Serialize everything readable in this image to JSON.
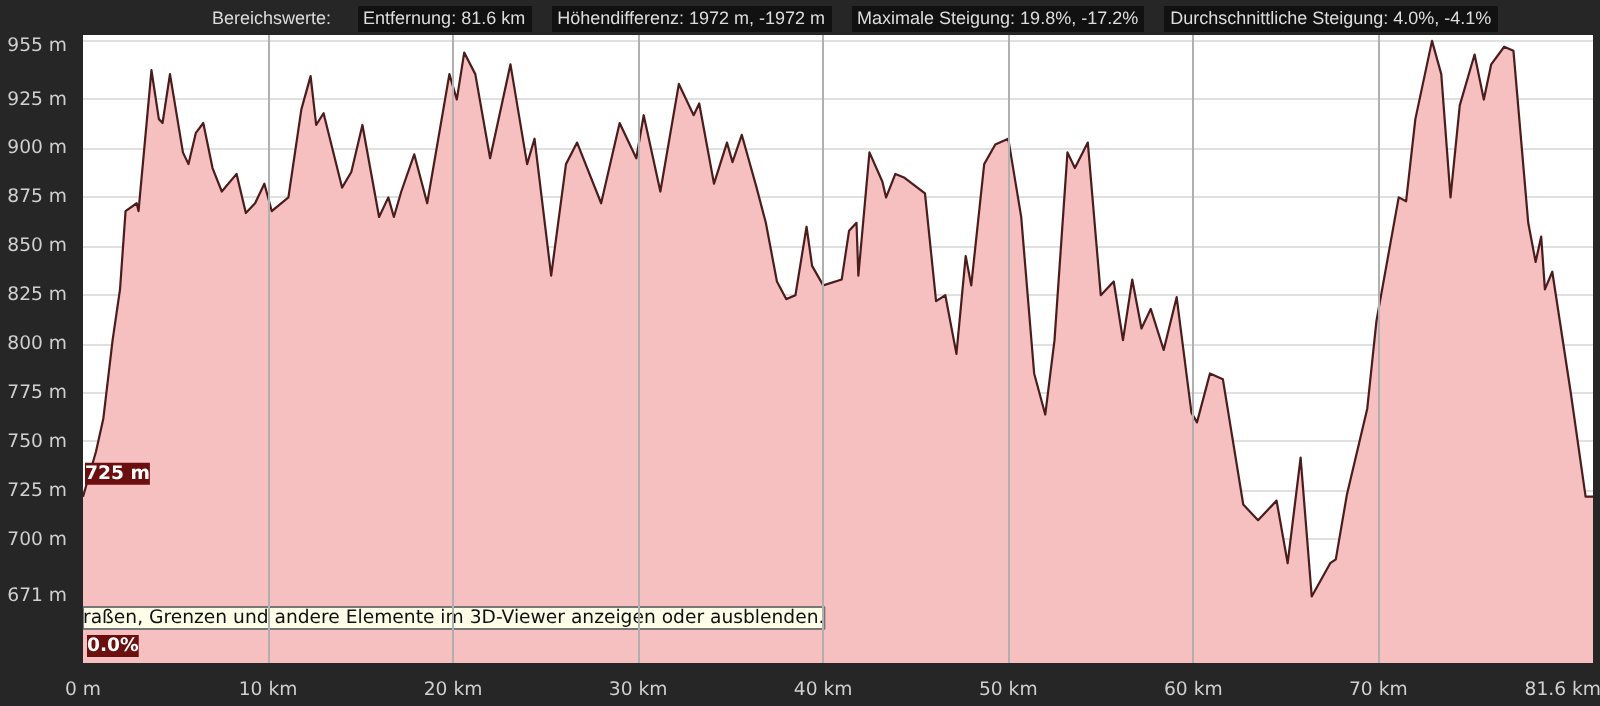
{
  "chart_data": {
    "type": "area",
    "xlim": [
      0,
      81.6
    ],
    "ylim": [
      637,
      958
    ],
    "xticks": [
      {
        "value": 0,
        "label": "0 m"
      },
      {
        "value": 10,
        "label": "10 km"
      },
      {
        "value": 20,
        "label": "20 km"
      },
      {
        "value": 30,
        "label": "30 km"
      },
      {
        "value": 40,
        "label": "40 km"
      },
      {
        "value": 50,
        "label": "50 km"
      },
      {
        "value": 60,
        "label": "60 km"
      },
      {
        "value": 70,
        "label": "70 km"
      },
      {
        "value": 81.6,
        "label": "81.6 km"
      }
    ],
    "yticks": [
      {
        "value": 671,
        "label": "671 m"
      },
      {
        "value": 700,
        "label": "700 m"
      },
      {
        "value": 725,
        "label": "725 m"
      },
      {
        "value": 750,
        "label": "750 m"
      },
      {
        "value": 775,
        "label": "775 m"
      },
      {
        "value": 800,
        "label": "800 m"
      },
      {
        "value": 825,
        "label": "825 m"
      },
      {
        "value": 850,
        "label": "850 m"
      },
      {
        "value": 875,
        "label": "875 m"
      },
      {
        "value": 900,
        "label": "900 m"
      },
      {
        "value": 925,
        "label": "925 m"
      },
      {
        "value": 955,
        "label": "955 m"
      }
    ],
    "grid": true,
    "annotations": [
      "Bereichswerte:",
      "Entfernung: 81.6 km",
      "Höhendifferenz: 1972 m, -1972 m",
      "Maximale Steigung: 19.8%, -17.2%",
      "Durchschnittliche Steigung: 4.0%, -4.1%",
      {
        "text": "725 m",
        "x": 0,
        "y": 725
      },
      "0.0%",
      "raßen, Grenzen und andere Elemente im 3D-Viewer anzeigen oder ausblenden."
    ],
    "series": [
      {
        "color": "#f6bfc0",
        "x": [
          0,
          0.7,
          1.1,
          1.6,
          2.0,
          2.3,
          2.9,
          3.0,
          3.7,
          4.1,
          4.3,
          4.7,
          5.4,
          5.7,
          6.1,
          6.5,
          7.0,
          7.5,
          8.3,
          8.8,
          9.3,
          9.8,
          10.2,
          11.1,
          11.8,
          12.3,
          12.6,
          13.0,
          14.0,
          14.5,
          15.1,
          16.0,
          16.5,
          16.8,
          17.2,
          17.9,
          18.6,
          19.8,
          20.2,
          20.6,
          21.2,
          22.0,
          23.1,
          24.0,
          24.4,
          25.3,
          26.1,
          26.7,
          28.0,
          29.0,
          29.9,
          30.3,
          31.2,
          32.2,
          33.0,
          33.3,
          34.1,
          34.8,
          35.1,
          35.6,
          36.4,
          36.9,
          37.5,
          38.0,
          38.5,
          39.1,
          39.4,
          40.0,
          41.0,
          41.4,
          41.8,
          41.9,
          42.5,
          43.2,
          43.4,
          43.9,
          44.4,
          45.5,
          46.1,
          46.6,
          47.2,
          47.7,
          48.0,
          48.7,
          49.3,
          50.0,
          50.7,
          51.4,
          52.0,
          52.5,
          53.2,
          53.6,
          54.3,
          55.0,
          55.7,
          56.2,
          56.7,
          57.2,
          57.7,
          58.4,
          59.1,
          59.9,
          60.2,
          60.9,
          61.6,
          62.7,
          63.5,
          64.5,
          65.1,
          65.8,
          66.4,
          67.4,
          67.7,
          68.3,
          69.4,
          69.9,
          71.1,
          71.5,
          72.0,
          72.9,
          73.4,
          73.9,
          74.4,
          75.2,
          75.7,
          76.1,
          76.8,
          77.3,
          78.1,
          78.5,
          78.8,
          79.0,
          79.4,
          80.4,
          81.2,
          81.6
        ],
        "values": [
          722,
          745,
          762,
          802,
          828,
          868,
          872,
          868,
          940,
          915,
          913,
          938,
          898,
          892,
          908,
          913,
          890,
          878,
          887,
          867,
          872,
          882,
          868,
          875,
          920,
          937,
          912,
          918,
          880,
          888,
          912,
          865,
          875,
          865,
          878,
          897,
          872,
          938,
          925,
          949,
          938,
          895,
          943,
          892,
          905,
          835,
          892,
          903,
          872,
          913,
          895,
          917,
          878,
          933,
          917,
          923,
          882,
          903,
          893,
          907,
          880,
          862,
          832,
          823,
          825,
          860,
          840,
          830,
          833,
          858,
          862,
          835,
          898,
          883,
          875,
          887,
          885,
          877,
          822,
          825,
          795,
          845,
          830,
          892,
          902,
          905,
          865,
          785,
          764,
          802,
          898,
          890,
          903,
          825,
          832,
          802,
          833,
          808,
          818,
          797,
          824,
          765,
          760,
          785,
          782,
          718,
          710,
          720,
          688,
          742,
          671,
          688,
          690,
          723,
          767,
          812,
          875,
          873,
          915,
          955,
          938,
          875,
          922,
          948,
          925,
          943,
          952,
          950,
          862,
          842,
          855,
          828,
          837,
          775,
          722,
          722
        ]
      }
    ]
  }
}
